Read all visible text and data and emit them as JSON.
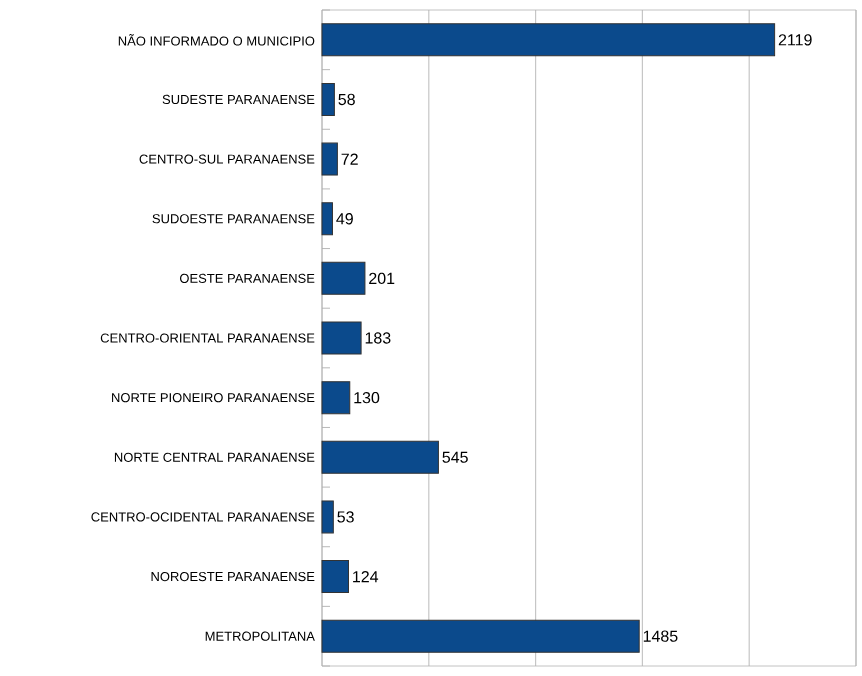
{
  "chart_data": {
    "type": "bar",
    "orientation": "horizontal",
    "categories": [
      "NÃO INFORMADO O MUNICIPIO",
      "SUDESTE PARANAENSE",
      "CENTRO-SUL PARANAENSE",
      "SUDOESTE PARANAENSE",
      "OESTE PARANAENSE",
      "CENTRO-ORIENTAL PARANAENSE",
      "NORTE PIONEIRO PARANAENSE",
      "NORTE CENTRAL PARANAENSE",
      "CENTRO-OCIDENTAL PARANAENSE",
      "NOROESTE PARANAENSE",
      "METROPOLITANA"
    ],
    "values": [
      2119,
      58,
      72,
      49,
      201,
      183,
      130,
      545,
      53,
      124,
      1485
    ],
    "color": "#0b4a8c",
    "xlim": [
      0,
      2500
    ],
    "xticks": [
      {
        "value": 0,
        "label": null
      },
      {
        "value": 500,
        "label": null
      },
      {
        "value": 1000,
        "label": null
      },
      {
        "value": 1500,
        "label": null
      },
      {
        "value": 2000,
        "label": null
      },
      {
        "value": 2500,
        "label": null
      }
    ],
    "grid": "x",
    "tick_labels": "y",
    "data_labels": true
  }
}
